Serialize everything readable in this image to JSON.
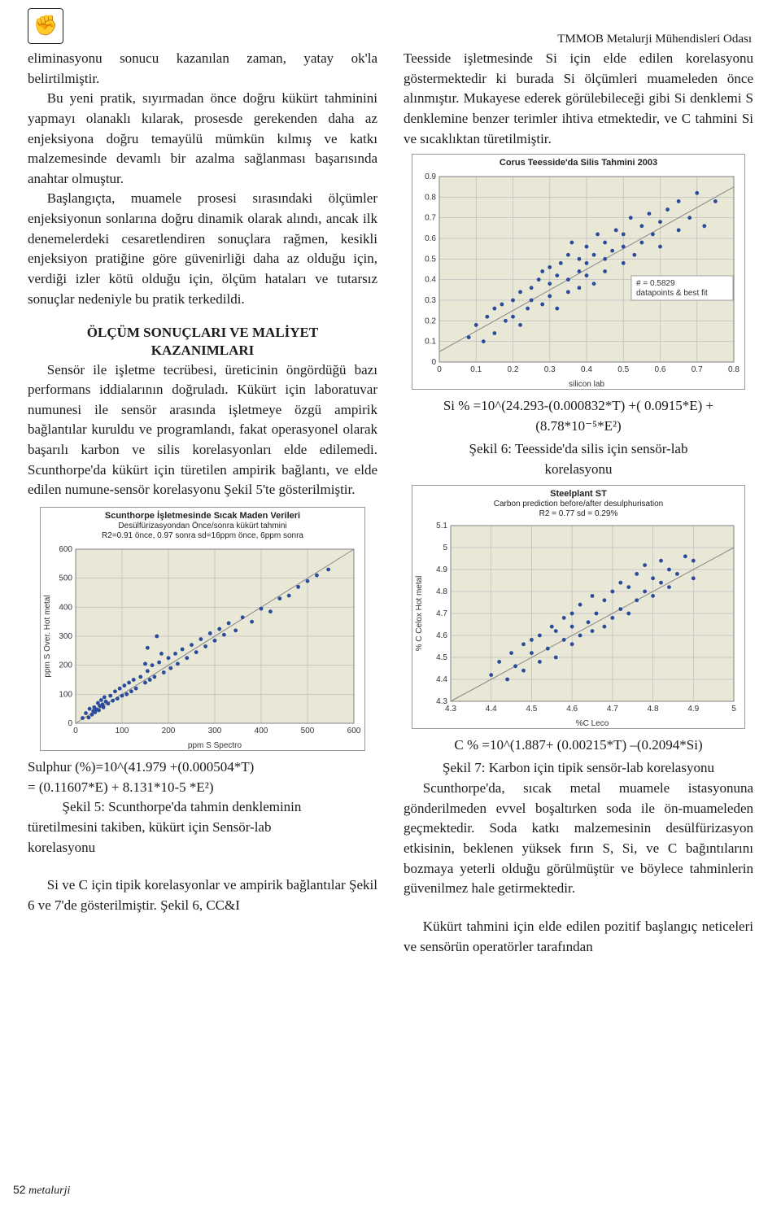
{
  "header": {
    "logo_glyph": "✊",
    "org": "TMMOB Metalurji Mühendisleri Odası"
  },
  "left": {
    "p1": "eliminasyonu sonucu kazanılan zaman, yatay ok'la belirtilmiştir.",
    "p2": "Bu yeni pratik, sıyırmadan önce doğru kükürt tahminini yapmayı olanaklı kılarak, prosesde gerekenden daha az enjeksiyona doğru temayülü mümkün kılmış ve katkı malzemesinde devamlı bir azalma sağlanması başarısında anahtar olmuştur.",
    "p3": "Başlangıçta, muamele prosesi sırasındaki ölçümler enjeksiyonun sonlarına doğru dinamik olarak alındı, ancak ilk denemelerdeki cesaretlendiren sonuçlara rağmen, kesikli enjeksiyon pratiğine göre güvenirliği daha az olduğu için, verdiği izler kötü olduğu için, ölçüm hataları ve tutarsız sonuçlar nedeniyle bu pratik terkedildi.",
    "section_title_1": "ÖLÇÜM SONUÇLARI VE MALİYET",
    "section_title_2": "KAZANIMLARI",
    "p4": "Sensör ile işletme tecrübesi, üreticinin öngördüğü bazı performans iddialarının doğruladı. Kükürt için laboratuvar numunesi ile sensör arasında işletmeye özgü ampirik bağlantılar kuruldu ve programlandı, fakat operasyonel olarak başarılı karbon ve silis korelasyonları elde edilemedi. Scunthorpe'da kükürt için türetilen ampirik bağlantı, ve elde edilen numune-sensör korelasyonu Şekil 5'te gösterilmiştir.",
    "eq1a": "Sulphur (%)=10^(41.979 +(0.000504*T)",
    "eq1b": "= (0.11607*E) + 8.131*10-5 *E²)",
    "caption5a": "Şekil 5: Scunthorpe'da tahmin denkleminin",
    "caption5b": "türetilmesini takiben, kükürt için Sensör-lab",
    "caption5c": "korelasyonu",
    "p5": "Si ve C için tipik korelasyonlar ve ampirik bağlantılar Şekil 6 ve 7'de gösterilmiştir. Şekil 6, CC&I"
  },
  "right": {
    "p1": "Teesside işletmesinde Si için elde edilen korelasyonu göstermektedir ki burada Si ölçümleri muameleden önce alınmıştır. Mukayese ederek görülebileceği gibi Si denklemi S denklemine benzer terimler ihtiva etmektedir, ve C tahmini Si ve sıcaklıktan türetilmiştir.",
    "eq2a": "Si % =10^(24.293-(0.000832*T) +( 0.0915*E) +",
    "eq2b": "(8.78*10⁻⁵*E²)",
    "caption6a": "Şekil 6:  Teesside'da silis için sensör-lab",
    "caption6b": "korelasyonu",
    "eq3": "C % =10^(1.887+ (0.00215*T) –(0.2094*Si)",
    "caption7": "Şekil 7: Karbon için tipik sensör-lab korelasyonu",
    "p2": "Scunthorpe'da, sıcak metal muamele istasyonuna gönderilmeden evvel boşaltırken soda ile ön-muameleden geçmektedir. Soda katkı malzemesinin desülfürizasyon etkisinin, beklenen yüksek fırın S, Si, ve C bağıntılarını bozmaya yeterli olduğu görülmüştür ve böylece tahminlerin güvenilmez hale getirmektedir.",
    "p3": "Kükürt tahmini için elde edilen pozitif başlangıç neticeleri ve sensörün operatörler tarafından"
  },
  "footer": {
    "page": "52",
    "brand": "metalurji"
  },
  "chart5": {
    "type": "scatter",
    "title1": "Scunthorpe İşletmesinde Sıcak Maden Verileri",
    "title2": "Desülfürizasyondan Önce/sonra kükürt tahmini",
    "title3": "R2=0.91 önce, 0.97 sonra   sd=16ppm önce, 6ppm sonra",
    "xlabel": "ppm S Spectro",
    "ylabel": "ppm S Over. Hot metal",
    "xlim": [
      0,
      600
    ],
    "ylim": [
      0,
      600
    ],
    "xticks": [
      0,
      100,
      200,
      300,
      400,
      500,
      600
    ],
    "yticks": [
      0,
      100,
      200,
      300,
      400,
      500,
      600
    ],
    "bg": "#e9e7d6",
    "grid_color": "#bfbfbf",
    "point_color": "#2a4b9b",
    "ref_line": [
      [
        0,
        0
      ],
      [
        600,
        600
      ]
    ],
    "points": [
      [
        15,
        18
      ],
      [
        22,
        35
      ],
      [
        28,
        20
      ],
      [
        30,
        50
      ],
      [
        35,
        30
      ],
      [
        40,
        55
      ],
      [
        42,
        38
      ],
      [
        48,
        70
      ],
      [
        50,
        45
      ],
      [
        55,
        80
      ],
      [
        60,
        55
      ],
      [
        62,
        90
      ],
      [
        38,
        42
      ],
      [
        45,
        48
      ],
      [
        52,
        60
      ],
      [
        58,
        65
      ],
      [
        65,
        75
      ],
      [
        70,
        68
      ],
      [
        75,
        95
      ],
      [
        80,
        78
      ],
      [
        85,
        110
      ],
      [
        90,
        85
      ],
      [
        95,
        120
      ],
      [
        100,
        95
      ],
      [
        105,
        130
      ],
      [
        110,
        100
      ],
      [
        115,
        140
      ],
      [
        120,
        110
      ],
      [
        125,
        150
      ],
      [
        130,
        120
      ],
      [
        140,
        160
      ],
      [
        150,
        140
      ],
      [
        155,
        180
      ],
      [
        160,
        150
      ],
      [
        165,
        200
      ],
      [
        170,
        160
      ],
      [
        180,
        210
      ],
      [
        190,
        175
      ],
      [
        200,
        225
      ],
      [
        205,
        190
      ],
      [
        215,
        240
      ],
      [
        220,
        205
      ],
      [
        230,
        255
      ],
      [
        240,
        225
      ],
      [
        250,
        270
      ],
      [
        260,
        245
      ],
      [
        270,
        290
      ],
      [
        280,
        265
      ],
      [
        290,
        310
      ],
      [
        300,
        285
      ],
      [
        310,
        325
      ],
      [
        320,
        305
      ],
      [
        330,
        345
      ],
      [
        345,
        320
      ],
      [
        360,
        365
      ],
      [
        380,
        350
      ],
      [
        400,
        395
      ],
      [
        420,
        385
      ],
      [
        440,
        430
      ],
      [
        460,
        440
      ],
      [
        480,
        470
      ],
      [
        500,
        490
      ],
      [
        520,
        510
      ],
      [
        545,
        530
      ],
      [
        150,
        205
      ],
      [
        155,
        260
      ],
      [
        185,
        240
      ],
      [
        175,
        300
      ]
    ]
  },
  "chart6": {
    "type": "scatter",
    "title": "Corus Teesside'da Silis Tahmini  2003",
    "xlabel": "silicon lab",
    "ylabel": "",
    "legend1": "# = 0.5829",
    "legend2": "datapoints & best fit",
    "xlim": [
      0,
      0.8
    ],
    "ylim": [
      0,
      0.9
    ],
    "xticks": [
      0,
      0.1,
      0.2,
      0.3,
      0.4,
      0.5,
      0.6,
      0.7,
      0.8
    ],
    "yticks": [
      0,
      0.1,
      0.2,
      0.3,
      0.4,
      0.5,
      0.6,
      0.7,
      0.8,
      0.9
    ],
    "bg": "#e9e7d6",
    "grid_color": "#bfbfbf",
    "point_color": "#2a4b9b",
    "ref_line": [
      [
        0,
        0.05
      ],
      [
        0.8,
        0.85
      ]
    ],
    "points": [
      [
        0.08,
        0.12
      ],
      [
        0.1,
        0.18
      ],
      [
        0.12,
        0.1
      ],
      [
        0.13,
        0.22
      ],
      [
        0.15,
        0.14
      ],
      [
        0.15,
        0.26
      ],
      [
        0.17,
        0.28
      ],
      [
        0.18,
        0.2
      ],
      [
        0.2,
        0.3
      ],
      [
        0.2,
        0.22
      ],
      [
        0.22,
        0.34
      ],
      [
        0.22,
        0.18
      ],
      [
        0.24,
        0.26
      ],
      [
        0.25,
        0.36
      ],
      [
        0.25,
        0.3
      ],
      [
        0.27,
        0.4
      ],
      [
        0.28,
        0.28
      ],
      [
        0.28,
        0.44
      ],
      [
        0.3,
        0.32
      ],
      [
        0.3,
        0.38
      ],
      [
        0.3,
        0.46
      ],
      [
        0.32,
        0.26
      ],
      [
        0.32,
        0.42
      ],
      [
        0.33,
        0.48
      ],
      [
        0.35,
        0.34
      ],
      [
        0.35,
        0.4
      ],
      [
        0.35,
        0.52
      ],
      [
        0.36,
        0.58
      ],
      [
        0.38,
        0.36
      ],
      [
        0.38,
        0.44
      ],
      [
        0.38,
        0.5
      ],
      [
        0.4,
        0.42
      ],
      [
        0.4,
        0.48
      ],
      [
        0.4,
        0.56
      ],
      [
        0.42,
        0.38
      ],
      [
        0.42,
        0.52
      ],
      [
        0.43,
        0.62
      ],
      [
        0.45,
        0.44
      ],
      [
        0.45,
        0.5
      ],
      [
        0.45,
        0.58
      ],
      [
        0.47,
        0.54
      ],
      [
        0.48,
        0.64
      ],
      [
        0.5,
        0.48
      ],
      [
        0.5,
        0.56
      ],
      [
        0.5,
        0.62
      ],
      [
        0.52,
        0.7
      ],
      [
        0.53,
        0.52
      ],
      [
        0.55,
        0.58
      ],
      [
        0.55,
        0.66
      ],
      [
        0.57,
        0.72
      ],
      [
        0.58,
        0.62
      ],
      [
        0.6,
        0.56
      ],
      [
        0.6,
        0.68
      ],
      [
        0.62,
        0.74
      ],
      [
        0.65,
        0.64
      ],
      [
        0.65,
        0.78
      ],
      [
        0.68,
        0.7
      ],
      [
        0.7,
        0.82
      ],
      [
        0.72,
        0.66
      ],
      [
        0.75,
        0.78
      ]
    ]
  },
  "chart7": {
    "type": "scatter",
    "title1": "Steelplant ST",
    "title2": "Carbon prediction before/after desulphurisation",
    "title3": "R2 = 0.77  sd = 0.29%",
    "xlabel": "%C Leco",
    "ylabel": "% C Celox Hot metal",
    "xlim": [
      4.3,
      5.0
    ],
    "ylim": [
      4.3,
      5.1
    ],
    "xticks": [
      4.3,
      4.4,
      4.5,
      4.6,
      4.7,
      4.8,
      4.9,
      5.0
    ],
    "yticks": [
      4.3,
      4.4,
      4.5,
      4.6,
      4.7,
      4.8,
      4.9,
      5.0,
      5.1
    ],
    "bg": "#e9e7d6",
    "grid_color": "#bfbfbf",
    "point_color": "#2a4b9b",
    "ref_line": [
      [
        4.3,
        4.3
      ],
      [
        5.0,
        5.0
      ]
    ],
    "points": [
      [
        4.4,
        4.42
      ],
      [
        4.42,
        4.48
      ],
      [
        4.44,
        4.4
      ],
      [
        4.45,
        4.52
      ],
      [
        4.46,
        4.46
      ],
      [
        4.48,
        4.56
      ],
      [
        4.48,
        4.44
      ],
      [
        4.5,
        4.52
      ],
      [
        4.5,
        4.58
      ],
      [
        4.52,
        4.48
      ],
      [
        4.52,
        4.6
      ],
      [
        4.54,
        4.54
      ],
      [
        4.55,
        4.64
      ],
      [
        4.56,
        4.5
      ],
      [
        4.56,
        4.62
      ],
      [
        4.58,
        4.58
      ],
      [
        4.58,
        4.68
      ],
      [
        4.6,
        4.56
      ],
      [
        4.6,
        4.64
      ],
      [
        4.6,
        4.7
      ],
      [
        4.62,
        4.6
      ],
      [
        4.62,
        4.74
      ],
      [
        4.64,
        4.66
      ],
      [
        4.65,
        4.62
      ],
      [
        4.65,
        4.78
      ],
      [
        4.66,
        4.7
      ],
      [
        4.68,
        4.64
      ],
      [
        4.68,
        4.76
      ],
      [
        4.7,
        4.68
      ],
      [
        4.7,
        4.8
      ],
      [
        4.72,
        4.72
      ],
      [
        4.72,
        4.84
      ],
      [
        4.74,
        4.7
      ],
      [
        4.74,
        4.82
      ],
      [
        4.76,
        4.76
      ],
      [
        4.76,
        4.88
      ],
      [
        4.78,
        4.8
      ],
      [
        4.78,
        4.92
      ],
      [
        4.8,
        4.78
      ],
      [
        4.8,
        4.86
      ],
      [
        4.82,
        4.84
      ],
      [
        4.82,
        4.94
      ],
      [
        4.84,
        4.82
      ],
      [
        4.84,
        4.9
      ],
      [
        4.86,
        4.88
      ],
      [
        4.88,
        4.96
      ],
      [
        4.9,
        4.86
      ],
      [
        4.9,
        4.94
      ]
    ]
  }
}
